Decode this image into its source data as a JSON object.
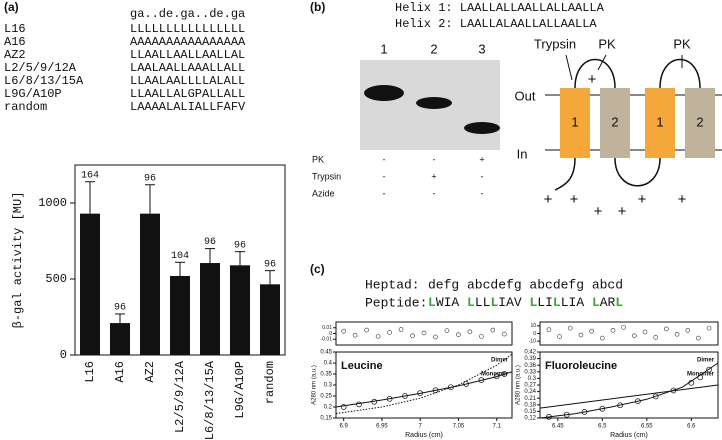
{
  "panel_a": {
    "label": "(a)",
    "header": "ga..de.ga..de.ga",
    "rows": [
      [
        "L16",
        "LLLLLLLLLLLLLLLL"
      ],
      [
        "A16",
        "AAAAAAAAAAAAAAAA"
      ],
      [
        "AZ2",
        "LLAALLAALLAALLAL"
      ],
      [
        "L2/5/9/12A",
        "LAALAALLAAALLALL"
      ],
      [
        "L6/8/13/15A",
        "LLAALAALLLLALALL"
      ],
      [
        "L9G/A10P",
        "LLAALLALGPALLALL"
      ],
      [
        "random",
        "LAAAALALIALLFAFV"
      ]
    ]
  },
  "panel_b": {
    "label": "(b)",
    "helices": [
      "Helix 1: LAALLALLAALLALLAALLA",
      "Helix 2: LAALLALAALLALLAALLA"
    ],
    "lanes": [
      "1",
      "2",
      "3"
    ],
    "treatments": [
      [
        "PK",
        "-",
        "-",
        "+"
      ],
      [
        "Trypsin",
        "-",
        "+",
        "-"
      ],
      [
        "Azide",
        "-",
        "-",
        "-"
      ]
    ],
    "diagram": {
      "proteases": [
        "Trypsin",
        "PK",
        "PK"
      ],
      "out": "Out",
      "in": "In",
      "helix_labels": [
        "1",
        "2",
        "1",
        "2"
      ],
      "loop_charge": "+",
      "cyto_charges": [
        "+",
        "+",
        "+",
        "+",
        "+",
        "+"
      ]
    }
  },
  "panel_c": {
    "label": "(c)",
    "heptad_label": "Heptad:",
    "heptad": "defg abcdefg abcdefg abcd",
    "peptide_label": "Peptide:",
    "peptide_segments": [
      {
        "text": "L",
        "color": "#3aa935"
      },
      {
        "text": "WIA "
      },
      {
        "text": "L",
        "color": "#3aa935"
      },
      {
        "text": "LL"
      },
      {
        "text": "L",
        "color": "#3aa935"
      },
      {
        "text": "IAV "
      },
      {
        "text": "L",
        "color": "#3aa935"
      },
      {
        "text": "LI"
      },
      {
        "text": "L",
        "color": "#3aa935"
      },
      {
        "text": "LIA "
      },
      {
        "text": "L",
        "color": "#3aa935"
      },
      {
        "text": "AR"
      },
      {
        "text": "L",
        "color": "#3aa935"
      }
    ]
  },
  "chart_data": [
    {
      "type": "bar",
      "ylabel": "β-gal activity [MU]",
      "color": "#111111",
      "categories": [
        "L16",
        "A16",
        "AZ2",
        "L2/5/9/12A",
        "L6/8/13/15A",
        "L9G/A10P",
        "random"
      ],
      "values": [
        930,
        210,
        930,
        520,
        605,
        590,
        465
      ],
      "errors": [
        210,
        60,
        190,
        90,
        95,
        90,
        90
      ],
      "n_labels": [
        164,
        96,
        96,
        104,
        96,
        96,
        96
      ],
      "ylim": [
        0,
        1250
      ],
      "yticks": [
        0,
        500,
        1000
      ]
    },
    {
      "type": "scatter",
      "title": "Leucine",
      "title_color": "#111111",
      "xlabel": "Radius (cm)",
      "ylabel": "A280 nm (a.u.)",
      "xlim": [
        6.89,
        7.12
      ],
      "xticks": [
        6.9,
        6.95,
        7.0,
        7.05,
        7.1
      ],
      "ylim": [
        0.15,
        0.45
      ],
      "yticks": [
        0.15,
        0.2,
        0.25,
        0.3,
        0.35,
        0.4,
        0.45
      ],
      "series": [
        {
          "style": "points",
          "x": [
            6.9,
            6.92,
            6.94,
            6.96,
            6.98,
            7.0,
            7.02,
            7.04,
            7.06,
            7.08,
            7.1,
            7.11
          ],
          "values": [
            0.2,
            0.212,
            0.224,
            0.237,
            0.25,
            0.263,
            0.276,
            0.29,
            0.305,
            0.322,
            0.34,
            0.35
          ]
        },
        {
          "name": "Dimer",
          "style": "dotted",
          "x": [
            6.89,
            6.95,
            7.0,
            7.05,
            7.1,
            7.12
          ],
          "values": [
            0.17,
            0.2,
            0.24,
            0.3,
            0.39,
            0.44
          ]
        },
        {
          "name": "Monomer",
          "style": "line",
          "x": [
            6.89,
            6.95,
            7.0,
            7.05,
            7.1,
            7.12
          ],
          "values": [
            0.2,
            0.232,
            0.262,
            0.296,
            0.338,
            0.36
          ]
        }
      ],
      "residuals": {
        "ylim": [
          -0.02,
          0.02
        ],
        "yticks": [
          -0.01,
          0,
          0.01
        ],
        "x": [
          6.9,
          6.915,
          6.93,
          6.945,
          6.96,
          6.975,
          6.99,
          7.005,
          7.02,
          7.035,
          7.05,
          7.065,
          7.08,
          7.095,
          7.11
        ],
        "values": [
          0.004,
          -0.003,
          0.006,
          -0.005,
          0.002,
          0.007,
          -0.004,
          0.001,
          -0.006,
          0.005,
          -0.002,
          0.003,
          -0.005,
          0.006,
          -0.001
        ]
      }
    },
    {
      "type": "scatter",
      "title": "Fluoroleucine",
      "title_color": "#3aa935",
      "xlabel": "Radius (cm)",
      "ylabel": "A280 nm (a.u.)",
      "xlim": [
        6.43,
        6.63
      ],
      "xticks": [
        6.45,
        6.5,
        6.55,
        6.6
      ],
      "ylim": [
        0.12,
        0.42
      ],
      "yticks": [
        0.12,
        0.15,
        0.18,
        0.21,
        0.24,
        0.27,
        0.3,
        0.33,
        0.36,
        0.39,
        0.42
      ],
      "series": [
        {
          "style": "points",
          "x": [
            6.44,
            6.46,
            6.48,
            6.5,
            6.52,
            6.54,
            6.56,
            6.58,
            6.6,
            6.61,
            6.62
          ],
          "values": [
            0.125,
            0.135,
            0.148,
            0.162,
            0.178,
            0.196,
            0.218,
            0.245,
            0.28,
            0.305,
            0.34
          ]
        },
        {
          "name": "Dimer",
          "style": "line",
          "x": [
            6.43,
            6.47,
            6.51,
            6.55,
            6.59,
            6.63
          ],
          "values": [
            0.12,
            0.14,
            0.17,
            0.205,
            0.26,
            0.37
          ]
        },
        {
          "name": "Monomer",
          "style": "line",
          "x": [
            6.43,
            6.63
          ],
          "values": [
            0.165,
            0.27
          ]
        }
      ],
      "residuals": {
        "ylim": [
          -0.015,
          0.015
        ],
        "yticks": [
          {
            "value": -0.01,
            "label": "-10"
          },
          0,
          {
            "value": 0.01,
            "label": "10"
          }
        ],
        "x": [
          6.44,
          6.452,
          6.464,
          6.476,
          6.488,
          6.5,
          6.512,
          6.524,
          6.536,
          6.548,
          6.56,
          6.572,
          6.584,
          6.596,
          6.608,
          6.62
        ],
        "values": [
          0.005,
          -0.004,
          0.007,
          -0.002,
          0.003,
          -0.006,
          0.004,
          0.008,
          -0.003,
          0.002,
          -0.005,
          0.006,
          -0.001,
          0.004,
          -0.006,
          0.007
        ]
      }
    }
  ]
}
